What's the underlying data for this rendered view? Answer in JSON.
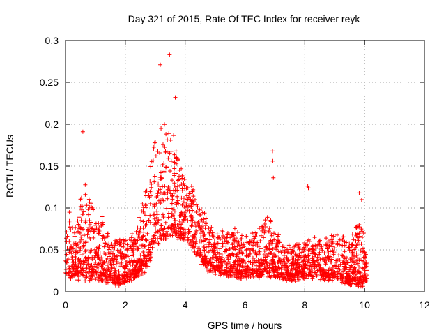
{
  "chart_data": {
    "type": "scatter",
    "title": "Day 321 of 2015, Rate Of TEC Index for receiver reyk",
    "xlabel": "GPS time / hours",
    "ylabel": "ROTI / TECUs",
    "xlim": [
      0,
      12
    ],
    "ylim": [
      0,
      0.3
    ],
    "xticks": [
      0,
      2,
      4,
      6,
      8,
      10,
      12
    ],
    "yticks": [
      0,
      0.05,
      0.1,
      0.15,
      0.2,
      0.25,
      0.3
    ],
    "ytick_labels": [
      "0",
      "0.05",
      "0.1",
      "0.15",
      "0.2",
      "0.25",
      "0.3"
    ],
    "grid": true,
    "marker": "+",
    "color": "#ff0000",
    "data_extent_hours": [
      0,
      10.1
    ],
    "notable_points": [
      {
        "x": 0.58,
        "y": 0.191
      },
      {
        "x": 3.17,
        "y": 0.271
      },
      {
        "x": 3.48,
        "y": 0.283
      },
      {
        "x": 3.67,
        "y": 0.232
      },
      {
        "x": 6.92,
        "y": 0.168
      },
      {
        "x": 6.93,
        "y": 0.156
      },
      {
        "x": 6.95,
        "y": 0.136
      },
      {
        "x": 8.1,
        "y": 0.126
      },
      {
        "x": 8.12,
        "y": 0.124
      },
      {
        "x": 9.82,
        "y": 0.118
      },
      {
        "x": 9.9,
        "y": 0.11
      }
    ],
    "envelope": [
      {
        "x": 0.0,
        "base": 0.03,
        "spread": 0.035
      },
      {
        "x": 0.1,
        "base": 0.04,
        "spread": 0.055
      },
      {
        "x": 0.3,
        "base": 0.035,
        "spread": 0.045
      },
      {
        "x": 0.6,
        "base": 0.045,
        "spread": 0.08
      },
      {
        "x": 0.9,
        "base": 0.04,
        "spread": 0.06
      },
      {
        "x": 1.2,
        "base": 0.035,
        "spread": 0.055
      },
      {
        "x": 1.5,
        "base": 0.025,
        "spread": 0.03
      },
      {
        "x": 1.8,
        "base": 0.025,
        "spread": 0.04
      },
      {
        "x": 2.1,
        "base": 0.028,
        "spread": 0.035
      },
      {
        "x": 2.4,
        "base": 0.035,
        "spread": 0.04
      },
      {
        "x": 2.7,
        "base": 0.055,
        "spread": 0.08
      },
      {
        "x": 3.0,
        "base": 0.09,
        "spread": 0.09
      },
      {
        "x": 3.3,
        "base": 0.1,
        "spread": 0.1
      },
      {
        "x": 3.6,
        "base": 0.1,
        "spread": 0.09
      },
      {
        "x": 3.9,
        "base": 0.085,
        "spread": 0.055
      },
      {
        "x": 4.2,
        "base": 0.075,
        "spread": 0.05
      },
      {
        "x": 4.5,
        "base": 0.055,
        "spread": 0.05
      },
      {
        "x": 4.8,
        "base": 0.04,
        "spread": 0.035
      },
      {
        "x": 5.2,
        "base": 0.035,
        "spread": 0.035
      },
      {
        "x": 5.6,
        "base": 0.035,
        "spread": 0.04
      },
      {
        "x": 6.0,
        "base": 0.03,
        "spread": 0.03
      },
      {
        "x": 6.4,
        "base": 0.035,
        "spread": 0.04
      },
      {
        "x": 6.8,
        "base": 0.04,
        "spread": 0.05
      },
      {
        "x": 7.2,
        "base": 0.03,
        "spread": 0.03
      },
      {
        "x": 7.6,
        "base": 0.025,
        "spread": 0.025
      },
      {
        "x": 8.0,
        "base": 0.03,
        "spread": 0.03
      },
      {
        "x": 8.5,
        "base": 0.03,
        "spread": 0.03
      },
      {
        "x": 9.0,
        "base": 0.03,
        "spread": 0.035
      },
      {
        "x": 9.5,
        "base": 0.025,
        "spread": 0.035
      },
      {
        "x": 9.9,
        "base": 0.03,
        "spread": 0.055
      },
      {
        "x": 10.1,
        "base": 0.02,
        "spread": 0.02
      }
    ]
  }
}
